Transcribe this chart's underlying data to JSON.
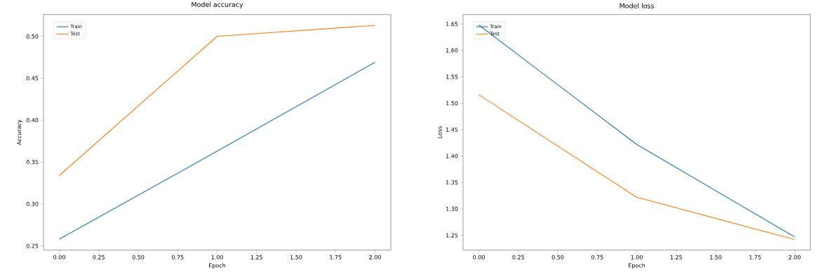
{
  "chart_data": [
    {
      "type": "line",
      "title": "Model accuracy",
      "xlabel": "Epoch",
      "ylabel": "Accuracy",
      "x": [
        0,
        1,
        2
      ],
      "series": [
        {
          "name": "Train",
          "color": "#1f77b4",
          "values": [
            0.258,
            0.363,
            0.469
          ]
        },
        {
          "name": "Test",
          "color": "#ff7f0e",
          "values": [
            0.334,
            0.5,
            0.513
          ]
        }
      ],
      "xlim": [
        -0.1,
        2.1
      ],
      "ylim": [
        0.245,
        0.526
      ],
      "xticks": [
        {
          "value": 0,
          "label": "0.00"
        },
        {
          "value": 0.25,
          "label": "0.25"
        },
        {
          "value": 0.5,
          "label": "0.50"
        },
        {
          "value": 0.75,
          "label": "0.75"
        },
        {
          "value": 1,
          "label": "1.00"
        },
        {
          "value": 1.25,
          "label": "1.25"
        },
        {
          "value": 1.5,
          "label": "1.50"
        },
        {
          "value": 1.75,
          "label": "1.75"
        },
        {
          "value": 2,
          "label": "2.00"
        }
      ],
      "yticks": [
        {
          "value": 0.25,
          "label": "0.25"
        },
        {
          "value": 0.3,
          "label": "0.30"
        },
        {
          "value": 0.35,
          "label": "0.35"
        },
        {
          "value": 0.4,
          "label": "0.40"
        },
        {
          "value": 0.45,
          "label": "0.45"
        },
        {
          "value": 0.5,
          "label": "0.50"
        }
      ],
      "legend": "top left",
      "grid": false,
      "marker": "none"
    },
    {
      "type": "line",
      "title": "Model loss",
      "xlabel": "Epoch",
      "ylabel": "Loss",
      "x": [
        0,
        1,
        2
      ],
      "series": [
        {
          "name": "Train",
          "color": "#1f77b4",
          "values": [
            1.648,
            1.422,
            1.247
          ]
        },
        {
          "name": "Test",
          "color": "#ff7f0e",
          "values": [
            1.516,
            1.322,
            1.242
          ]
        }
      ],
      "xlim": [
        -0.1,
        2.1
      ],
      "ylim": [
        1.222,
        1.668
      ],
      "xticks": [
        {
          "value": 0,
          "label": "0.00"
        },
        {
          "value": 0.25,
          "label": "0.25"
        },
        {
          "value": 0.5,
          "label": "0.50"
        },
        {
          "value": 0.75,
          "label": "0.75"
        },
        {
          "value": 1,
          "label": "1.00"
        },
        {
          "value": 1.25,
          "label": "1.25"
        },
        {
          "value": 1.5,
          "label": "1.50"
        },
        {
          "value": 1.75,
          "label": "1.75"
        },
        {
          "value": 2,
          "label": "2.00"
        }
      ],
      "yticks": [
        {
          "value": 1.25,
          "label": "1.25"
        },
        {
          "value": 1.3,
          "label": "1.30"
        },
        {
          "value": 1.35,
          "label": "1.35"
        },
        {
          "value": 1.4,
          "label": "1.40"
        },
        {
          "value": 1.45,
          "label": "1.45"
        },
        {
          "value": 1.5,
          "label": "1.50"
        },
        {
          "value": 1.55,
          "label": "1.55"
        },
        {
          "value": 1.6,
          "label": "1.60"
        },
        {
          "value": 1.65,
          "label": "1.65"
        }
      ],
      "legend": "top left",
      "grid": false,
      "marker": "none"
    }
  ]
}
